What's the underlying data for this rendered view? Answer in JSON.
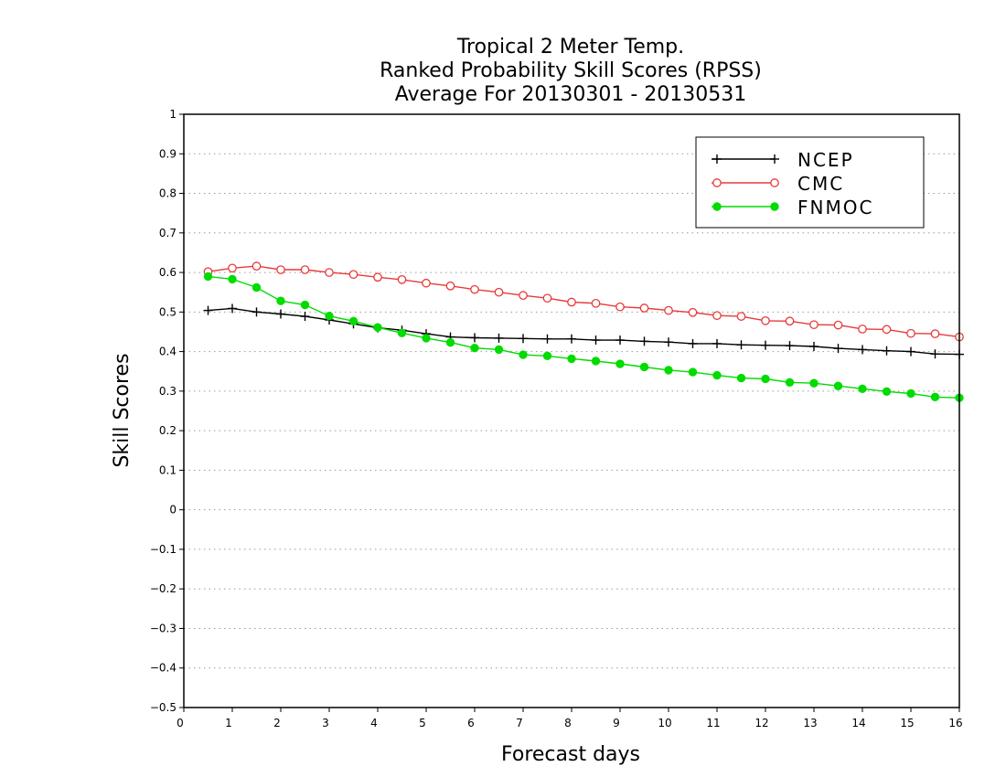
{
  "chart_data": {
    "type": "line",
    "title": [
      "Tropical 2 Meter Temp.",
      "Ranked Probability Skill Scores (RPSS)",
      "Average For 20130301 - 20130531"
    ],
    "xlabel": "Forecast days",
    "ylabel": "Skill Scores",
    "xlim": [
      0,
      16
    ],
    "ylim": [
      -0.5,
      1
    ],
    "xticks": [
      "0",
      "1",
      "2",
      "3",
      "4",
      "5",
      "6",
      "7",
      "8",
      "9",
      "10",
      "11",
      "12",
      "13",
      "14",
      "15",
      "16"
    ],
    "yticks": [
      "−0.5",
      "−0.4",
      "−0.3",
      "−0.2",
      "−0.1",
      "0",
      "0.1",
      "0.2",
      "0.3",
      "0.4",
      "0.5",
      "0.6",
      "0.7",
      "0.8",
      "0.9",
      "1"
    ],
    "grid": true,
    "legend_position": "top-right",
    "x": [
      0.5,
      1,
      1.5,
      2,
      2.5,
      3,
      3.5,
      4,
      4.5,
      5,
      5.5,
      6,
      6.5,
      7,
      7.5,
      8,
      8.5,
      9,
      9.5,
      10,
      10.5,
      11,
      11.5,
      12,
      12.5,
      13,
      13.5,
      14,
      14.5,
      15,
      15.5,
      16
    ],
    "series": [
      {
        "name": "NCEP",
        "color": "#000000",
        "marker": "plus",
        "values": [
          0.504,
          0.509,
          0.5,
          0.495,
          0.489,
          0.48,
          0.47,
          0.46,
          0.454,
          0.445,
          0.437,
          0.435,
          0.434,
          0.433,
          0.432,
          0.432,
          0.429,
          0.429,
          0.426,
          0.424,
          0.42,
          0.42,
          0.417,
          0.416,
          0.415,
          0.413,
          0.408,
          0.405,
          0.402,
          0.4,
          0.394,
          0.393
        ]
      },
      {
        "name": "CMC",
        "color": "#e83a3a",
        "marker": "open-circle",
        "values": [
          0.602,
          0.611,
          0.616,
          0.607,
          0.607,
          0.6,
          0.595,
          0.588,
          0.582,
          0.573,
          0.566,
          0.557,
          0.55,
          0.542,
          0.535,
          0.525,
          0.522,
          0.513,
          0.51,
          0.504,
          0.499,
          0.491,
          0.489,
          0.478,
          0.477,
          0.468,
          0.467,
          0.457,
          0.456,
          0.446,
          0.445,
          0.437
        ]
      },
      {
        "name": "FNMOC",
        "color": "#00dc00",
        "marker": "filled-circle",
        "values": [
          0.59,
          0.583,
          0.562,
          0.528,
          0.518,
          0.49,
          0.477,
          0.461,
          0.447,
          0.434,
          0.423,
          0.409,
          0.405,
          0.392,
          0.389,
          0.382,
          0.376,
          0.369,
          0.361,
          0.353,
          0.348,
          0.34,
          0.333,
          0.331,
          0.322,
          0.32,
          0.313,
          0.306,
          0.299,
          0.294,
          0.285,
          0.283
        ]
      }
    ]
  }
}
